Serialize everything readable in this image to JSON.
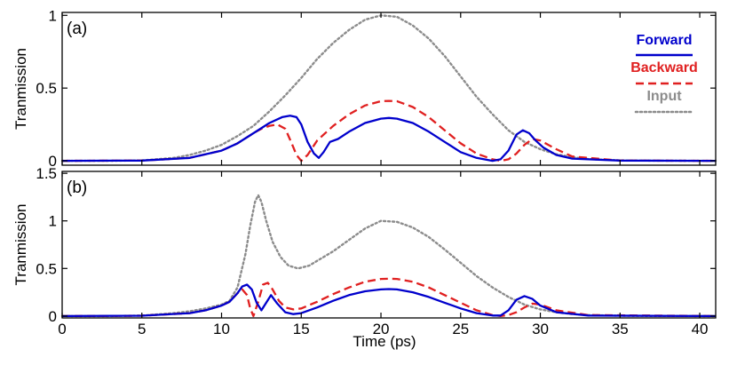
{
  "chart_data": [
    {
      "type": "line",
      "panel_label": "(a)",
      "xlabel": "Time (ps)",
      "ylabel": "Tranmission",
      "xlim": [
        0,
        41
      ],
      "ylim": [
        -0.03,
        1.02
      ],
      "xticks": [
        0,
        5,
        10,
        15,
        20,
        25,
        30,
        35,
        40
      ],
      "yticks": [
        0,
        0.5,
        1
      ],
      "ytick_labels": [
        "0",
        "0.5",
        "1"
      ],
      "show_xtick_labels": false,
      "legend_position": "top-right",
      "series": [
        {
          "name": "Forward",
          "color": "#0000cc",
          "style": "solid",
          "x": [
            0,
            5,
            8,
            10,
            11,
            12,
            13,
            13.8,
            14.3,
            14.7,
            15,
            15.4,
            15.8,
            16.1,
            16.4,
            16.8,
            17.3,
            18,
            19,
            20,
            20.5,
            21,
            22,
            23,
            24,
            25,
            26,
            27,
            27.5,
            28,
            28.5,
            28.9,
            29.3,
            29.7,
            30.2,
            31,
            32,
            35,
            41
          ],
          "y": [
            0,
            0.002,
            0.02,
            0.07,
            0.12,
            0.19,
            0.26,
            0.3,
            0.31,
            0.3,
            0.25,
            0.13,
            0.05,
            0.02,
            0.06,
            0.13,
            0.15,
            0.2,
            0.26,
            0.29,
            0.295,
            0.29,
            0.26,
            0.2,
            0.13,
            0.06,
            0.02,
            0,
            0.01,
            0.07,
            0.18,
            0.21,
            0.19,
            0.14,
            0.09,
            0.04,
            0.015,
            0.002,
            0
          ]
        },
        {
          "name": "Backward",
          "color": "#e02020",
          "style": "dashed",
          "x": [
            0,
            5,
            8,
            10,
            11,
            12,
            12.5,
            13,
            13.5,
            14,
            14.4,
            14.7,
            15,
            15.4,
            16,
            17,
            18,
            19,
            20,
            20.5,
            21,
            22,
            23,
            24,
            25,
            26,
            27,
            27.5,
            28,
            28.5,
            29,
            29.5,
            30,
            30.5,
            31,
            32,
            35,
            41
          ],
          "y": [
            0,
            0.002,
            0.02,
            0.07,
            0.12,
            0.19,
            0.22,
            0.24,
            0.25,
            0.22,
            0.12,
            0.04,
            0,
            0.04,
            0.14,
            0.24,
            0.32,
            0.38,
            0.41,
            0.412,
            0.41,
            0.37,
            0.3,
            0.21,
            0.12,
            0.05,
            0.01,
            0,
            0.01,
            0.05,
            0.11,
            0.15,
            0.14,
            0.11,
            0.08,
            0.03,
            0.002,
            0
          ]
        },
        {
          "name": "Input",
          "color": "#8c8c8c",
          "style": "dotted",
          "x": [
            0,
            3,
            5,
            7,
            8,
            9,
            10,
            11,
            12,
            13,
            14,
            15,
            16,
            17,
            18,
            19,
            20,
            21,
            22,
            23,
            24,
            25,
            26,
            27,
            28,
            29,
            30,
            31,
            32,
            33,
            35,
            37,
            41
          ],
          "y": [
            0,
            0,
            0.003,
            0.02,
            0.04,
            0.07,
            0.11,
            0.17,
            0.24,
            0.34,
            0.45,
            0.57,
            0.7,
            0.81,
            0.9,
            0.97,
            1.0,
            0.99,
            0.93,
            0.84,
            0.72,
            0.58,
            0.44,
            0.32,
            0.21,
            0.13,
            0.08,
            0.045,
            0.025,
            0.012,
            0.003,
            0.001,
            0
          ]
        }
      ],
      "legend": [
        {
          "label": "Forward",
          "color": "#0000cc",
          "style": "solid"
        },
        {
          "label": "Backward",
          "color": "#e02020",
          "style": "dashed"
        },
        {
          "label": "Input",
          "color": "#8c8c8c",
          "style": "dotted"
        }
      ]
    },
    {
      "type": "line",
      "panel_label": "(b)",
      "xlabel": "Time (ps)",
      "ylabel": "Tranmission",
      "xlim": [
        0,
        41
      ],
      "ylim": [
        -0.02,
        1.52
      ],
      "xticks": [
        0,
        5,
        10,
        15,
        20,
        25,
        30,
        35,
        40
      ],
      "xtick_labels": [
        "0",
        "5",
        "10",
        "15",
        "20",
        "25",
        "30",
        "35",
        "40"
      ],
      "yticks": [
        0,
        0.5,
        1,
        1.5
      ],
      "ytick_labels": [
        "0",
        "0.5",
        "1",
        "1.5"
      ],
      "show_xtick_labels": true,
      "series": [
        {
          "name": "Forward",
          "color": "#0000cc",
          "style": "solid",
          "x": [
            0,
            5,
            8,
            9,
            10,
            10.5,
            11,
            11.3,
            11.6,
            11.9,
            12.2,
            12.5,
            12.8,
            13.1,
            13.5,
            14,
            14.5,
            15,
            16,
            17,
            18,
            19,
            20,
            20.5,
            21,
            22,
            23,
            24,
            25,
            26,
            27,
            27.5,
            28,
            28.5,
            29,
            29.5,
            30,
            31,
            33,
            41
          ],
          "y": [
            0,
            0.003,
            0.03,
            0.06,
            0.11,
            0.15,
            0.24,
            0.31,
            0.33,
            0.28,
            0.14,
            0.06,
            0.14,
            0.22,
            0.13,
            0.04,
            0.02,
            0.03,
            0.09,
            0.16,
            0.22,
            0.26,
            0.28,
            0.283,
            0.28,
            0.25,
            0.2,
            0.14,
            0.08,
            0.03,
            0.005,
            0.005,
            0.06,
            0.17,
            0.21,
            0.18,
            0.11,
            0.04,
            0.005,
            0
          ]
        },
        {
          "name": "Backward",
          "color": "#e02020",
          "style": "dashed",
          "x": [
            0,
            5,
            8,
            9,
            10,
            10.5,
            11,
            11.3,
            11.6,
            11.8,
            12,
            12.3,
            12.6,
            12.9,
            13.2,
            13.6,
            14,
            14.5,
            15,
            16,
            17,
            18,
            19,
            20,
            20.5,
            21,
            22,
            23,
            24,
            25,
            26,
            27,
            27.5,
            28,
            28.5,
            29,
            29.5,
            30,
            31,
            33,
            41
          ],
          "y": [
            0,
            0.003,
            0.03,
            0.06,
            0.11,
            0.15,
            0.24,
            0.28,
            0.22,
            0.08,
            0.0,
            0.15,
            0.33,
            0.35,
            0.28,
            0.16,
            0.09,
            0.07,
            0.08,
            0.15,
            0.23,
            0.3,
            0.36,
            0.39,
            0.393,
            0.39,
            0.36,
            0.3,
            0.22,
            0.14,
            0.06,
            0.01,
            0.0,
            0.01,
            0.04,
            0.09,
            0.13,
            0.12,
            0.06,
            0.01,
            0
          ]
        },
        {
          "name": "Input",
          "color": "#8c8c8c",
          "style": "dotted",
          "x": [
            0,
            3,
            5,
            7,
            8,
            9,
            10,
            10.5,
            11,
            11.5,
            11.8,
            12.1,
            12.3,
            12.5,
            12.8,
            13.2,
            13.7,
            14.2,
            14.8,
            15.5,
            16,
            17,
            18,
            19,
            20,
            21,
            22,
            23,
            24,
            25,
            26,
            27,
            28,
            29,
            30,
            31,
            32,
            33,
            35,
            37,
            41
          ],
          "y": [
            0,
            0,
            0.005,
            0.03,
            0.05,
            0.08,
            0.12,
            0.16,
            0.3,
            0.65,
            0.95,
            1.2,
            1.27,
            1.2,
            1.0,
            0.78,
            0.62,
            0.53,
            0.5,
            0.53,
            0.58,
            0.68,
            0.8,
            0.92,
            1.0,
            0.99,
            0.93,
            0.83,
            0.7,
            0.56,
            0.42,
            0.3,
            0.2,
            0.12,
            0.07,
            0.04,
            0.02,
            0.01,
            0.003,
            0.001,
            0
          ]
        }
      ]
    }
  ]
}
